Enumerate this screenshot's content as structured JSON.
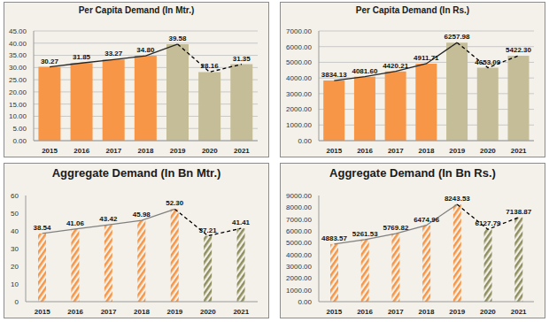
{
  "chart_data": [
    {
      "type": "bar",
      "title": "Per Capita Demand (In Mtr.)",
      "categories": [
        "2015",
        "2016",
        "2017",
        "2018",
        "2019",
        "2020",
        "2021"
      ],
      "ylim": [
        0,
        45
      ],
      "yticks": [
        {
          "value": 0,
          "label": "0.00"
        },
        {
          "value": 5,
          "label": "5.00"
        },
        {
          "value": 10,
          "label": "10.00"
        },
        {
          "value": 15,
          "label": "15.00"
        },
        {
          "value": 20,
          "label": "20.00"
        },
        {
          "value": 25,
          "label": "25.00"
        },
        {
          "value": 30,
          "label": "30.00"
        },
        {
          "value": 35,
          "label": "35.00"
        },
        {
          "value": 40,
          "label": "40.00"
        },
        {
          "value": 45,
          "label": "45.00"
        }
      ],
      "grid": true,
      "data_labels": true,
      "series": [
        {
          "type": "bar",
          "colors": [
            "#F79646",
            "#F79646",
            "#F79646",
            "#F79646",
            "#C4BD97",
            "#C4BD97",
            "#C4BD97"
          ],
          "values": [
            30.27,
            31.85,
            33.27,
            34.8,
            39.58,
            28.16,
            31.35
          ],
          "value_labels": [
            "30.27",
            "31.85",
            "33.27",
            "34.80",
            "39.58",
            "28.16",
            "31.35"
          ]
        },
        {
          "type": "line",
          "line_style": "solid",
          "color": "#262626",
          "values": [
            30.27,
            31.85,
            33.27,
            34.8,
            39.58,
            null,
            null
          ]
        },
        {
          "type": "line",
          "line_style": "dashed",
          "color": "#000000",
          "values": [
            null,
            null,
            null,
            null,
            39.58,
            28.16,
            31.35
          ]
        }
      ]
    },
    {
      "type": "bar",
      "title": "Per Capita Demand (In Rs.)",
      "categories": [
        "2015",
        "2016",
        "2017",
        "2018",
        "2019",
        "2020",
        "2021"
      ],
      "ylim": [
        0,
        7000
      ],
      "yticks": [
        {
          "value": 0,
          "label": "0.00"
        },
        {
          "value": 1000,
          "label": "1000.00"
        },
        {
          "value": 2000,
          "label": "2000.00"
        },
        {
          "value": 3000,
          "label": "3000.00"
        },
        {
          "value": 4000,
          "label": "4000.00"
        },
        {
          "value": 5000,
          "label": "5000.00"
        },
        {
          "value": 6000,
          "label": "6000.00"
        },
        {
          "value": 7000,
          "label": "7000.00"
        }
      ],
      "grid": true,
      "data_labels": true,
      "series": [
        {
          "type": "bar",
          "colors": [
            "#F79646",
            "#F79646",
            "#F79646",
            "#F79646",
            "#C4BD97",
            "#C4BD97",
            "#C4BD97"
          ],
          "values": [
            3834.13,
            4081.6,
            4420.21,
            4911.71,
            6257.98,
            4653.09,
            5422.3
          ],
          "value_labels": [
            "3834.13",
            "4081.60",
            "4420.21",
            "4911.71",
            "6257.98",
            "4653.09",
            "5422.30"
          ]
        },
        {
          "type": "line",
          "line_style": "solid",
          "color": "#262626",
          "values": [
            3834.13,
            4081.6,
            4420.21,
            4911.71,
            6257.98,
            null,
            null
          ]
        },
        {
          "type": "line",
          "line_style": "dashed",
          "color": "#000000",
          "values": [
            null,
            null,
            null,
            null,
            6257.98,
            4653.09,
            5422.3
          ]
        }
      ]
    },
    {
      "type": "bar",
      "title": "Aggregate Demand (In Bn Mtr.)",
      "categories": [
        "2015",
        "2016",
        "2017",
        "2018",
        "2019",
        "2020",
        "2021"
      ],
      "ylim": [
        0,
        60
      ],
      "yticks": [
        0,
        10,
        20,
        30,
        40,
        50,
        60
      ],
      "grid": false,
      "data_labels": true,
      "series": [
        {
          "type": "bar",
          "colors": [
            "#F79646",
            "#F79646",
            "#F79646",
            "#F79646",
            "#F79646",
            "#8E8E5E",
            "#8E8E5E"
          ],
          "values": [
            38.54,
            41.06,
            43.42,
            45.98,
            52.3,
            37.21,
            41.41
          ],
          "value_labels": [
            "38.54",
            "41.06",
            "43.42",
            "45.98",
            "52.30",
            "37.21",
            "41.41"
          ]
        },
        {
          "type": "line",
          "line_style": "solid",
          "color": "#808080",
          "values": [
            38.54,
            41.06,
            43.42,
            45.98,
            52.3,
            null,
            null
          ]
        },
        {
          "type": "line",
          "line_style": "dashed",
          "color": "#000000",
          "values": [
            null,
            null,
            null,
            null,
            52.3,
            37.21,
            41.41
          ]
        }
      ]
    },
    {
      "type": "bar",
      "title": "Aggregate Demand (In Bn Rs.)",
      "categories": [
        "2015",
        "2016",
        "2017",
        "2018",
        "2019",
        "2020",
        "2021"
      ],
      "ylim": [
        0,
        9000
      ],
      "yticks": [
        {
          "value": 0,
          "label": "0.00"
        },
        {
          "value": 1000,
          "label": "1000.00"
        },
        {
          "value": 2000,
          "label": "2000.00"
        },
        {
          "value": 3000,
          "label": "3000.00"
        },
        {
          "value": 4000,
          "label": "4000.00"
        },
        {
          "value": 5000,
          "label": "5000.00"
        },
        {
          "value": 6000,
          "label": "6000.00"
        },
        {
          "value": 7000,
          "label": "7000.00"
        },
        {
          "value": 8000,
          "label": "8000.00"
        },
        {
          "value": 9000,
          "label": "9000.00"
        }
      ],
      "grid": false,
      "data_labels": true,
      "series": [
        {
          "type": "bar",
          "colors": [
            "#F79646",
            "#F79646",
            "#F79646",
            "#F79646",
            "#F79646",
            "#8E8E5E",
            "#8E8E5E"
          ],
          "values": [
            4883.57,
            5261.53,
            5769.82,
            6474.96,
            8243.53,
            6127.79,
            7138.87
          ],
          "value_labels": [
            "4883.57",
            "5261.53",
            "5769.82",
            "6474.96",
            "8243.53",
            "6127.79",
            "7138.87"
          ]
        },
        {
          "type": "line",
          "line_style": "solid",
          "color": "#808080",
          "values": [
            4883.57,
            5261.53,
            5769.82,
            6474.96,
            8243.53,
            null,
            null
          ]
        },
        {
          "type": "line",
          "line_style": "dashed",
          "color": "#000000",
          "values": [
            null,
            null,
            null,
            null,
            8243.53,
            6127.79,
            7138.87
          ]
        }
      ]
    }
  ]
}
